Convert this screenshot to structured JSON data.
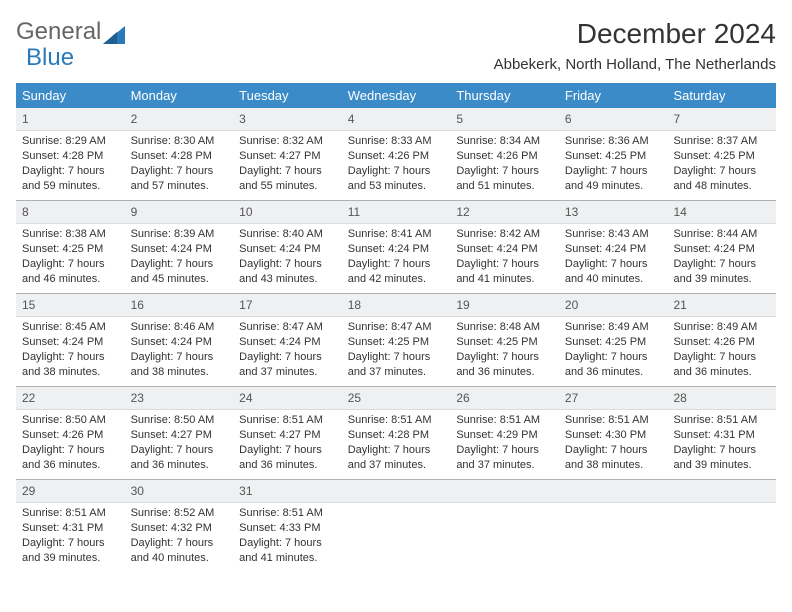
{
  "brand": {
    "part1": "General",
    "part2": "Blue"
  },
  "title": "December 2024",
  "location": "Abbekerk, North Holland, The Netherlands",
  "colors": {
    "header_bg": "#3b8bc9",
    "header_text": "#ffffff",
    "daynum_bg": "#eef0f2",
    "border": "#b0b0b0",
    "text": "#333333",
    "brand_gray": "#666666",
    "brand_blue": "#2a7ab9"
  },
  "day_names": [
    "Sunday",
    "Monday",
    "Tuesday",
    "Wednesday",
    "Thursday",
    "Friday",
    "Saturday"
  ],
  "weeks": [
    [
      {
        "n": "1",
        "sr": "Sunrise: 8:29 AM",
        "ss": "Sunset: 4:28 PM",
        "dl": "Daylight: 7 hours and 59 minutes."
      },
      {
        "n": "2",
        "sr": "Sunrise: 8:30 AM",
        "ss": "Sunset: 4:28 PM",
        "dl": "Daylight: 7 hours and 57 minutes."
      },
      {
        "n": "3",
        "sr": "Sunrise: 8:32 AM",
        "ss": "Sunset: 4:27 PM",
        "dl": "Daylight: 7 hours and 55 minutes."
      },
      {
        "n": "4",
        "sr": "Sunrise: 8:33 AM",
        "ss": "Sunset: 4:26 PM",
        "dl": "Daylight: 7 hours and 53 minutes."
      },
      {
        "n": "5",
        "sr": "Sunrise: 8:34 AM",
        "ss": "Sunset: 4:26 PM",
        "dl": "Daylight: 7 hours and 51 minutes."
      },
      {
        "n": "6",
        "sr": "Sunrise: 8:36 AM",
        "ss": "Sunset: 4:25 PM",
        "dl": "Daylight: 7 hours and 49 minutes."
      },
      {
        "n": "7",
        "sr": "Sunrise: 8:37 AM",
        "ss": "Sunset: 4:25 PM",
        "dl": "Daylight: 7 hours and 48 minutes."
      }
    ],
    [
      {
        "n": "8",
        "sr": "Sunrise: 8:38 AM",
        "ss": "Sunset: 4:25 PM",
        "dl": "Daylight: 7 hours and 46 minutes."
      },
      {
        "n": "9",
        "sr": "Sunrise: 8:39 AM",
        "ss": "Sunset: 4:24 PM",
        "dl": "Daylight: 7 hours and 45 minutes."
      },
      {
        "n": "10",
        "sr": "Sunrise: 8:40 AM",
        "ss": "Sunset: 4:24 PM",
        "dl": "Daylight: 7 hours and 43 minutes."
      },
      {
        "n": "11",
        "sr": "Sunrise: 8:41 AM",
        "ss": "Sunset: 4:24 PM",
        "dl": "Daylight: 7 hours and 42 minutes."
      },
      {
        "n": "12",
        "sr": "Sunrise: 8:42 AM",
        "ss": "Sunset: 4:24 PM",
        "dl": "Daylight: 7 hours and 41 minutes."
      },
      {
        "n": "13",
        "sr": "Sunrise: 8:43 AM",
        "ss": "Sunset: 4:24 PM",
        "dl": "Daylight: 7 hours and 40 minutes."
      },
      {
        "n": "14",
        "sr": "Sunrise: 8:44 AM",
        "ss": "Sunset: 4:24 PM",
        "dl": "Daylight: 7 hours and 39 minutes."
      }
    ],
    [
      {
        "n": "15",
        "sr": "Sunrise: 8:45 AM",
        "ss": "Sunset: 4:24 PM",
        "dl": "Daylight: 7 hours and 38 minutes."
      },
      {
        "n": "16",
        "sr": "Sunrise: 8:46 AM",
        "ss": "Sunset: 4:24 PM",
        "dl": "Daylight: 7 hours and 38 minutes."
      },
      {
        "n": "17",
        "sr": "Sunrise: 8:47 AM",
        "ss": "Sunset: 4:24 PM",
        "dl": "Daylight: 7 hours and 37 minutes."
      },
      {
        "n": "18",
        "sr": "Sunrise: 8:47 AM",
        "ss": "Sunset: 4:25 PM",
        "dl": "Daylight: 7 hours and 37 minutes."
      },
      {
        "n": "19",
        "sr": "Sunrise: 8:48 AM",
        "ss": "Sunset: 4:25 PM",
        "dl": "Daylight: 7 hours and 36 minutes."
      },
      {
        "n": "20",
        "sr": "Sunrise: 8:49 AM",
        "ss": "Sunset: 4:25 PM",
        "dl": "Daylight: 7 hours and 36 minutes."
      },
      {
        "n": "21",
        "sr": "Sunrise: 8:49 AM",
        "ss": "Sunset: 4:26 PM",
        "dl": "Daylight: 7 hours and 36 minutes."
      }
    ],
    [
      {
        "n": "22",
        "sr": "Sunrise: 8:50 AM",
        "ss": "Sunset: 4:26 PM",
        "dl": "Daylight: 7 hours and 36 minutes."
      },
      {
        "n": "23",
        "sr": "Sunrise: 8:50 AM",
        "ss": "Sunset: 4:27 PM",
        "dl": "Daylight: 7 hours and 36 minutes."
      },
      {
        "n": "24",
        "sr": "Sunrise: 8:51 AM",
        "ss": "Sunset: 4:27 PM",
        "dl": "Daylight: 7 hours and 36 minutes."
      },
      {
        "n": "25",
        "sr": "Sunrise: 8:51 AM",
        "ss": "Sunset: 4:28 PM",
        "dl": "Daylight: 7 hours and 37 minutes."
      },
      {
        "n": "26",
        "sr": "Sunrise: 8:51 AM",
        "ss": "Sunset: 4:29 PM",
        "dl": "Daylight: 7 hours and 37 minutes."
      },
      {
        "n": "27",
        "sr": "Sunrise: 8:51 AM",
        "ss": "Sunset: 4:30 PM",
        "dl": "Daylight: 7 hours and 38 minutes."
      },
      {
        "n": "28",
        "sr": "Sunrise: 8:51 AM",
        "ss": "Sunset: 4:31 PM",
        "dl": "Daylight: 7 hours and 39 minutes."
      }
    ],
    [
      {
        "n": "29",
        "sr": "Sunrise: 8:51 AM",
        "ss": "Sunset: 4:31 PM",
        "dl": "Daylight: 7 hours and 39 minutes."
      },
      {
        "n": "30",
        "sr": "Sunrise: 8:52 AM",
        "ss": "Sunset: 4:32 PM",
        "dl": "Daylight: 7 hours and 40 minutes."
      },
      {
        "n": "31",
        "sr": "Sunrise: 8:51 AM",
        "ss": "Sunset: 4:33 PM",
        "dl": "Daylight: 7 hours and 41 minutes."
      },
      {
        "empty": true
      },
      {
        "empty": true
      },
      {
        "empty": true
      },
      {
        "empty": true
      }
    ]
  ]
}
